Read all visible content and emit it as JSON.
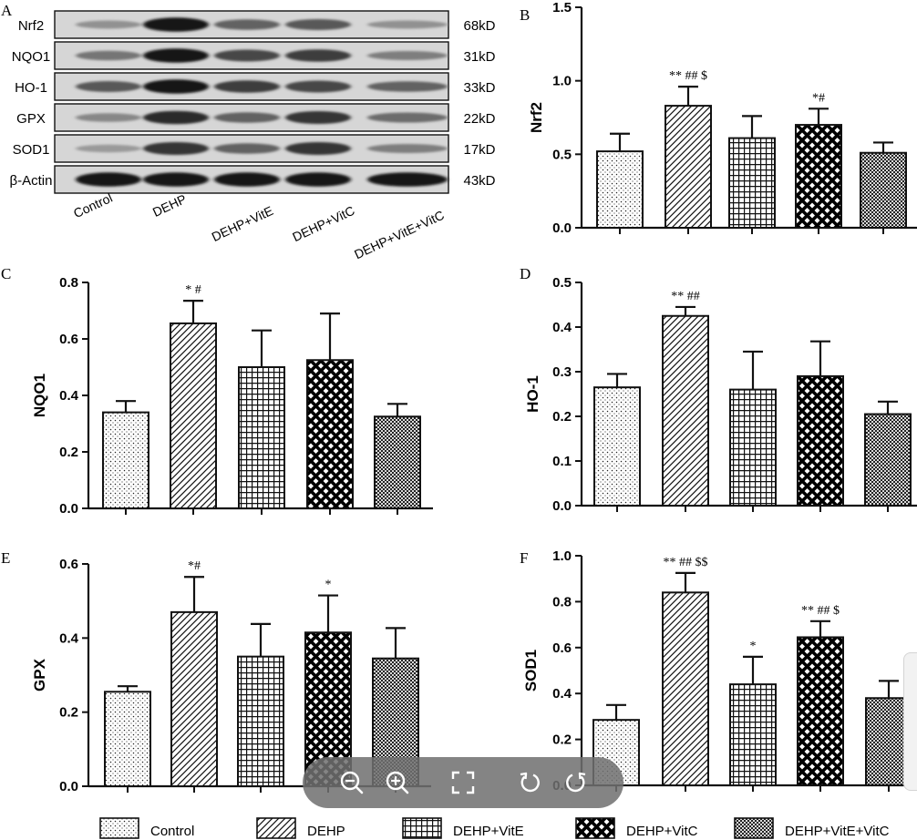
{
  "colors": {
    "axis": "#111111",
    "bar_stroke": "#111111",
    "toolbar_bg": "#707070",
    "toolbar_icon": "#ffffff"
  },
  "blot": {
    "panel_letter": "A",
    "lanes": [
      "Control",
      "DEHP",
      "DEHP+VitE",
      "DEHP+VitC",
      "DEHP+VitE+VitC"
    ],
    "rows": [
      {
        "protein": "Nrf2",
        "size": "68kD",
        "intensity": [
          0.3,
          0.95,
          0.55,
          0.6,
          0.3
        ]
      },
      {
        "protein": "NQO1",
        "size": "31kD",
        "intensity": [
          0.45,
          0.95,
          0.7,
          0.75,
          0.4
        ]
      },
      {
        "protein": "HO-1",
        "size": "33kD",
        "intensity": [
          0.6,
          0.95,
          0.75,
          0.7,
          0.55
        ]
      },
      {
        "protein": "GPX",
        "size": "22kD",
        "intensity": [
          0.35,
          0.85,
          0.55,
          0.8,
          0.5
        ]
      },
      {
        "protein": "SOD1",
        "size": "17kD",
        "intensity": [
          0.25,
          0.8,
          0.55,
          0.8,
          0.4
        ]
      },
      {
        "protein": "β-Actin",
        "size": "43kD",
        "intensity": [
          0.95,
          0.95,
          0.95,
          0.95,
          0.95
        ]
      }
    ]
  },
  "legend": {
    "items": [
      {
        "label": "Control",
        "pattern": "dots"
      },
      {
        "label": "DEHP",
        "pattern": "diag"
      },
      {
        "label": "DEHP+VitE",
        "pattern": "grid"
      },
      {
        "label": "DEHP+VitC",
        "pattern": "cross"
      },
      {
        "label": "DEHP+VitE+VitC",
        "pattern": "checker"
      }
    ]
  },
  "toolbar": {
    "icons": [
      "zoom-out-icon",
      "zoom-in-icon",
      "fullscreen-icon",
      "rotate-left-icon",
      "rotate-right-icon"
    ]
  },
  "chart_data": [
    {
      "panel": "B",
      "type": "bar",
      "ylabel": "Nrf2",
      "ylim": [
        0,
        1.5
      ],
      "yticks": [
        "0.0",
        "0.5",
        "1.0",
        "1.5"
      ],
      "tick_values": [
        0,
        0.5,
        1.0,
        1.5
      ],
      "categories": [
        "Control",
        "DEHP",
        "DEHP+VitE",
        "DEHP+VitC",
        "DEHP+VitE+VitC"
      ],
      "values": [
        0.52,
        0.83,
        0.61,
        0.7,
        0.51
      ],
      "errors": [
        0.12,
        0.13,
        0.15,
        0.11,
        0.07
      ],
      "annotations": [
        "",
        "** ## $",
        "",
        "*#",
        ""
      ]
    },
    {
      "panel": "C",
      "type": "bar",
      "ylabel": "NQO1",
      "ylim": [
        0,
        0.8
      ],
      "yticks": [
        "0.0",
        "0.2",
        "0.4",
        "0.6",
        "0.8"
      ],
      "tick_values": [
        0,
        0.2,
        0.4,
        0.6,
        0.8
      ],
      "categories": [
        "Control",
        "DEHP",
        "DEHP+VitE",
        "DEHP+VitC",
        "DEHP+VitE+VitC"
      ],
      "values": [
        0.34,
        0.655,
        0.5,
        0.525,
        0.325
      ],
      "errors": [
        0.04,
        0.08,
        0.13,
        0.165,
        0.045
      ],
      "annotations": [
        "",
        "* #",
        "",
        "",
        ""
      ]
    },
    {
      "panel": "D",
      "type": "bar",
      "ylabel": "HO-1",
      "ylim": [
        0,
        0.5
      ],
      "yticks": [
        "0.0",
        "0.1",
        "0.2",
        "0.3",
        "0.4",
        "0.5"
      ],
      "tick_values": [
        0,
        0.1,
        0.2,
        0.3,
        0.4,
        0.5
      ],
      "categories": [
        "Control",
        "DEHP",
        "DEHP+VitE",
        "DEHP+VitC",
        "DEHP+VitE+VitC"
      ],
      "values": [
        0.265,
        0.425,
        0.26,
        0.29,
        0.205
      ],
      "errors": [
        0.03,
        0.02,
        0.085,
        0.078,
        0.028
      ],
      "annotations": [
        "",
        "** ##",
        "",
        "",
        ""
      ]
    },
    {
      "panel": "E",
      "type": "bar",
      "ylabel": "GPX",
      "ylim": [
        0,
        0.6
      ],
      "yticks": [
        "0.0",
        "0.2",
        "0.4",
        "0.6"
      ],
      "tick_values": [
        0,
        0.2,
        0.4,
        0.6
      ],
      "categories": [
        "Control",
        "DEHP",
        "DEHP+VitE",
        "DEHP+VitC",
        "DEHP+VitE+VitC"
      ],
      "values": [
        0.255,
        0.47,
        0.35,
        0.415,
        0.345
      ],
      "errors": [
        0.015,
        0.095,
        0.088,
        0.1,
        0.082
      ],
      "annotations": [
        "",
        "*#",
        "",
        "*",
        ""
      ]
    },
    {
      "panel": "F",
      "type": "bar",
      "ylabel": "SOD1",
      "ylim": [
        0,
        1.0
      ],
      "yticks": [
        "0.0",
        "0.2",
        "0.4",
        "0.6",
        "0.8",
        "1.0"
      ],
      "tick_values": [
        0,
        0.2,
        0.4,
        0.6,
        0.8,
        1.0
      ],
      "categories": [
        "Control",
        "DEHP",
        "DEHP+VitE",
        "DEHP+VitC",
        "DEHP+VitE+VitC"
      ],
      "values": [
        0.285,
        0.84,
        0.44,
        0.645,
        0.38
      ],
      "errors": [
        0.065,
        0.085,
        0.12,
        0.07,
        0.075
      ],
      "annotations": [
        "",
        "** ## $$",
        "*",
        "** ## $",
        ""
      ]
    }
  ]
}
